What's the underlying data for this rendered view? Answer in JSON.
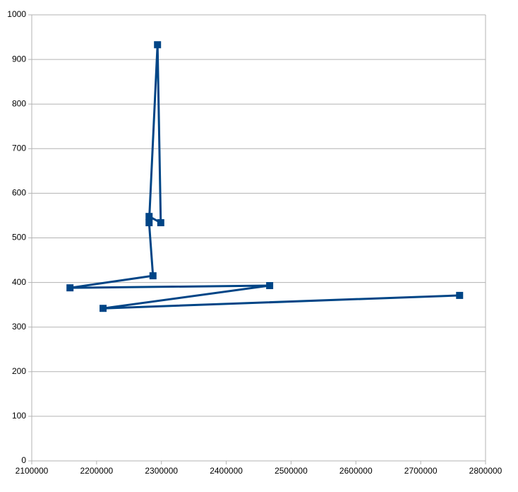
{
  "chart_data": {
    "type": "scatter-line",
    "x": [
      2281000,
      2299000,
      2294000,
      2281000,
      2287000,
      2159000,
      2467000,
      2210000,
      2760000
    ],
    "series": [
      {
        "color": "#004586",
        "values": [
          548,
          534,
          933,
          534,
          415,
          388,
          393,
          342,
          371
        ]
      }
    ],
    "xlim": [
      2100000,
      2800000
    ],
    "xticks": [
      2100000,
      2200000,
      2300000,
      2400000,
      2500000,
      2600000,
      2700000,
      2800000
    ],
    "ylim": [
      0,
      1000
    ],
    "yticks": [
      0,
      100,
      200,
      300,
      400,
      500,
      600,
      700,
      800,
      900,
      1000
    ],
    "grid": true
  }
}
